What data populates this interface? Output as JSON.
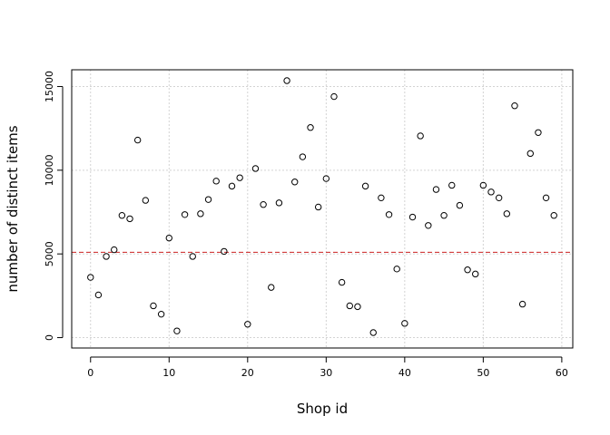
{
  "chart_data": {
    "type": "scatter",
    "title": "",
    "xlabel": "Shop id",
    "ylabel": "number of distinct items",
    "xlim": [
      -2.4,
      61.4
    ],
    "ylim": [
      -620,
      16000
    ],
    "x_ticks": [
      0,
      10,
      20,
      30,
      40,
      50,
      60
    ],
    "y_ticks": [
      0,
      5000,
      10000,
      15000
    ],
    "grid": true,
    "marker": "open-circle",
    "marker_color": "#000000",
    "x": [
      0,
      1,
      2,
      3,
      4,
      5,
      6,
      7,
      8,
      9,
      10,
      11,
      12,
      13,
      14,
      15,
      16,
      17,
      18,
      19,
      20,
      21,
      22,
      23,
      24,
      25,
      26,
      27,
      28,
      29,
      30,
      31,
      32,
      33,
      34,
      35,
      36,
      37,
      38,
      39,
      40,
      41,
      42,
      43,
      44,
      45,
      46,
      47,
      48,
      49,
      50,
      51,
      52,
      53,
      54,
      55,
      56,
      57,
      58,
      59
    ],
    "y": [
      3600,
      2550,
      4850,
      5250,
      7300,
      7100,
      11800,
      8200,
      1900,
      1400,
      5950,
      400,
      7350,
      4850,
      7400,
      8250,
      9350,
      5150,
      9050,
      9550,
      800,
      10100,
      7950,
      3000,
      8050,
      15350,
      9300,
      10800,
      12550,
      7800,
      9500,
      14400,
      3300,
      1900,
      1850,
      9050,
      300,
      8350,
      7350,
      4100,
      850,
      7200,
      12050,
      6700,
      8850,
      7300,
      9100,
      7900,
      4050,
      3800,
      9100,
      8700,
      8350,
      7400,
      13850,
      2000,
      11000,
      12250,
      8350,
      7300
    ],
    "reference_line": {
      "orientation": "horizontal",
      "value": 5100,
      "style": "dashed",
      "color": "#cc2222"
    }
  }
}
